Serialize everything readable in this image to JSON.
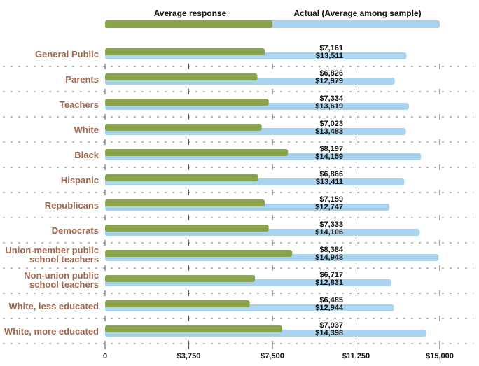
{
  "chart_data": {
    "type": "bar",
    "orientation": "horizontal",
    "categories": [
      "General Public",
      "Parents",
      "Teachers",
      "White",
      "Black",
      "Hispanic",
      "Republicans",
      "Democrats",
      "Union-member public school teachers",
      "Non-union public school teachers",
      "White, less educated",
      "White, more educated"
    ],
    "category_lines": [
      [
        "General Public"
      ],
      [
        "Parents"
      ],
      [
        "Teachers"
      ],
      [
        "White"
      ],
      [
        "Black"
      ],
      [
        "Hispanic"
      ],
      [
        "Republicans"
      ],
      [
        "Democrats"
      ],
      [
        "Union-member public",
        "school teachers"
      ],
      [
        "Non-union public",
        "school teachers"
      ],
      [
        "White, less educated"
      ],
      [
        "White, more educated"
      ]
    ],
    "series": [
      {
        "name": "Average response",
        "color": "#8aa44a",
        "values": [
          7161,
          6826,
          7334,
          7023,
          8197,
          6866,
          7159,
          7333,
          8384,
          6717,
          6485,
          7937
        ],
        "labels": [
          "$7,161",
          "$6,826",
          "$7,334",
          "$7,023",
          "$8,197",
          "$6,866",
          "$7,159",
          "$7,333",
          "$8,384",
          "$6,717",
          "$6,485",
          "$7,937"
        ]
      },
      {
        "name": "Actual (Average among sample)",
        "color": "#a9d4ef",
        "values": [
          13511,
          12979,
          13619,
          13483,
          14159,
          13411,
          12747,
          14106,
          14948,
          12831,
          12944,
          14398
        ],
        "labels": [
          "$13,511",
          "$12,979",
          "$13,619",
          "$13,483",
          "$14,159",
          "$13,411",
          "$12,747",
          "$14,106",
          "$14,948",
          "$12,831",
          "$12,944",
          "$14,398"
        ]
      }
    ],
    "legend": {
      "placement": "top",
      "green_value": 7500,
      "blue_value": 15000
    },
    "xaxis": {
      "ticks": [
        0,
        3750,
        7500,
        11250,
        15000
      ],
      "tick_labels": [
        "0",
        "$3,750",
        "$7,500",
        "$11,250",
        "$15,000"
      ],
      "range": [
        0,
        15000
      ]
    },
    "grid": true,
    "title": "",
    "xlabel": "",
    "ylabel": ""
  }
}
